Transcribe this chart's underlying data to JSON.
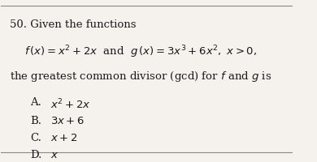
{
  "question_number": "50.",
  "intro": "Given the functions",
  "func_f": "$f\\,(x) = x^2 + 2x$  and  $g\\,(x) = 3x^3 + 6x^2,\\ x > 0,$",
  "body": "the greatest common divisor (gcd) for $f$ and $g$ is",
  "options": [
    {
      "label": "A.",
      "text": "$x^2 + 2x$"
    },
    {
      "label": "B.",
      "text": "$3x + 6$"
    },
    {
      "label": "C.",
      "text": "$x + 2$"
    },
    {
      "label": "D.",
      "text": "$x$"
    }
  ],
  "bg_color": "#f5f2ed",
  "text_color": "#1a1a1a",
  "border_color": "#888888"
}
